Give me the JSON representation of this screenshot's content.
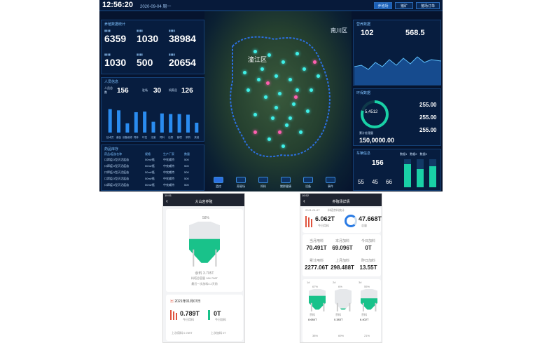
{
  "dashboard": {
    "clock": "12:56:20",
    "date": "2020-09-04",
    "weekday": "周一",
    "top_buttons": [
      "养殖场",
      "猪矿",
      "猪场订单"
    ],
    "farm_stats": {
      "title": "养殖数据统计",
      "values": [
        "6359",
        "1030",
        "38984",
        "1030",
        "500",
        "20654"
      ]
    },
    "people": {
      "title": "人员信息",
      "a_label": "人员总数",
      "a_val": "156",
      "b_label": "驻场",
      "b_val": "30",
      "c_label": "饲养员",
      "c_val": "126"
    },
    "bar_chart": {
      "values": [
        76,
        72,
        30,
        66,
        68,
        35,
        62,
        60,
        60,
        58,
        32
      ],
      "labels": [
        "技术员",
        "兽医",
        "设备维修",
        "饲养",
        "环控",
        "无害",
        "饲料",
        "后勤",
        "管理",
        "采购",
        "其他"
      ]
    },
    "drugs": {
      "title": "药品库存",
      "headers": [
        "药品/疫苗名称",
        "规格",
        "生产厂家",
        "数量"
      ],
      "rows": [
        [
          "口蹄疫O型灭活疫苗",
          "50ml/瓶",
          "中农威特",
          "500"
        ],
        [
          "口蹄疫O型灭活疫苗",
          "50ml/瓶",
          "中农威特",
          "500"
        ],
        [
          "口蹄疫O型灭活疫苗",
          "50ml/瓶",
          "中农威特",
          "500"
        ],
        [
          "口蹄疫O型灭活疫苗",
          "50ml/瓶",
          "中农威特",
          "500"
        ],
        [
          "口蹄疫O型灭活疫苗",
          "50ml/瓶",
          "中农威特",
          "500"
        ]
      ]
    },
    "map": {
      "label1": "潼江区",
      "label2": "南川区",
      "buttons": [
        "监控",
        "养殖场",
        "饲料",
        "猪群健康",
        "设备",
        "事件"
      ]
    },
    "feed": {
      "title": "营养数据",
      "a": "102",
      "b": "568.5"
    },
    "env": {
      "title": "环保数据",
      "gauge": "5,4512",
      "gauge_label": "累计处理量",
      "total": "150,0000.00",
      "r1": "255.00",
      "r2": "255.00",
      "r3": "255.00"
    },
    "vehicle": {
      "title": "车辆信息",
      "a": "156",
      "b": "55",
      "c": "45",
      "d": "66",
      "legend": [
        "数据1",
        "数据2",
        "数据3"
      ],
      "bars": [
        0.82,
        0.65,
        0.75
      ]
    }
  },
  "phone1": {
    "title": "大山岩养殖",
    "status_time": "10:51",
    "silo_pct": "58%",
    "remain": "余料 3.705T",
    "capacity": "料塔总容量 184.798T",
    "last": "最近一次加料4.2天前",
    "date": "2021年01月07日",
    "today_a": "0.789T",
    "today_a_label": "今日用料",
    "today_b": "0T",
    "today_b_label": "今日加料",
    "foot_a": "上次用料 0.789T",
    "foot_b": "上次加料 0T",
    "silo_fill": 0.58
  },
  "phone2": {
    "title": "养殖场详情",
    "status_time": "16:52",
    "date": "2021-01-07",
    "tab": "料塔余料统计",
    "today": "6.062T",
    "today_label": "今日用料",
    "total": "47.668T",
    "total_label": "总量",
    "grid": [
      [
        "当月用料",
        "70.491T"
      ],
      [
        "本月加料",
        "69.096T"
      ],
      [
        "今日加料",
        "0T"
      ],
      [
        "累计用料",
        "2277.06T"
      ],
      [
        "上月加料",
        "298.488T"
      ],
      [
        "昨日加料",
        "13.55T"
      ]
    ],
    "silos": [
      {
        "name": "1#",
        "pct": "67%",
        "rest": "余料",
        "val": "8.684T",
        "fill": 0.67
      },
      {
        "name": "2#",
        "pct": "6%",
        "rest": "余料",
        "val": "0.383T",
        "fill": 0.06
      },
      {
        "name": "3#",
        "pct": "55%",
        "rest": "余料",
        "val": "6.402T",
        "fill": 0.55
      }
    ],
    "silos2": [
      "38%",
      "69%",
      "21%"
    ]
  }
}
